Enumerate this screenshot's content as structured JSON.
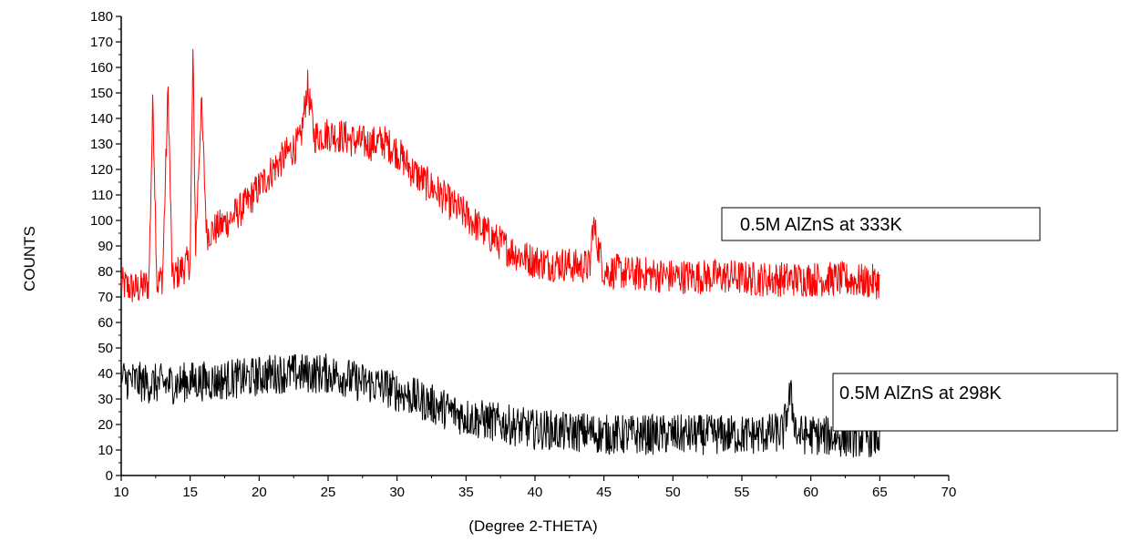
{
  "chart_data": {
    "type": "line",
    "title": "",
    "xlabel": "(Degree 2-THETA)",
    "ylabel": "COUNTS",
    "xlim": [
      10,
      70
    ],
    "ylim": [
      0,
      180
    ],
    "x_ticks": [
      "10",
      "15",
      "20",
      "25",
      "30",
      "35",
      "40",
      "45",
      "50",
      "55",
      "60",
      "65",
      "70"
    ],
    "y_ticks": [
      "0",
      "10",
      "20",
      "30",
      "40",
      "50",
      "60",
      "70",
      "80",
      "90",
      "100",
      "110",
      "120",
      "130",
      "140",
      "150",
      "160",
      "170",
      "180"
    ],
    "grid": false,
    "series": [
      {
        "name": "0.5M AlZnS at 333K",
        "color": "#ff0000",
        "x_range": [
          10,
          65
        ],
        "points": [
          [
            10,
            75
          ],
          [
            11,
            73
          ],
          [
            12,
            75
          ],
          [
            12.3,
            148
          ],
          [
            12.6,
            75
          ],
          [
            13,
            78
          ],
          [
            13.4,
            151
          ],
          [
            13.7,
            76
          ],
          [
            14,
            79
          ],
          [
            15,
            84
          ],
          [
            15.2,
            165
          ],
          [
            15.4,
            90
          ],
          [
            15.8,
            147
          ],
          [
            16.2,
            95
          ],
          [
            17,
            97
          ],
          [
            18,
            101
          ],
          [
            19,
            106
          ],
          [
            20,
            113
          ],
          [
            21,
            120
          ],
          [
            22,
            126
          ],
          [
            23,
            131
          ],
          [
            23.5,
            153
          ],
          [
            24,
            133
          ],
          [
            25,
            134
          ],
          [
            26,
            133
          ],
          [
            27,
            131
          ],
          [
            28,
            130
          ],
          [
            29,
            131
          ],
          [
            30,
            127
          ],
          [
            31,
            120
          ],
          [
            32,
            115
          ],
          [
            33,
            111
          ],
          [
            34,
            106
          ],
          [
            35,
            102
          ],
          [
            36,
            97
          ],
          [
            37,
            93
          ],
          [
            38,
            89
          ],
          [
            39,
            86
          ],
          [
            40,
            84
          ],
          [
            41,
            83
          ],
          [
            42,
            83
          ],
          [
            43,
            82
          ],
          [
            44,
            82
          ],
          [
            44.2,
            99
          ],
          [
            45,
            80
          ],
          [
            46,
            80
          ],
          [
            47,
            79
          ],
          [
            48,
            79
          ],
          [
            50,
            78
          ],
          [
            52,
            78
          ],
          [
            54,
            78
          ],
          [
            56,
            77
          ],
          [
            58,
            77
          ],
          [
            60,
            77
          ],
          [
            62,
            77
          ],
          [
            64,
            76
          ],
          [
            65,
            76
          ]
        ]
      },
      {
        "name": "0.5M AlZnS at 298K",
        "color": "#000000",
        "x_range": [
          10,
          65
        ],
        "points": [
          [
            10,
            38
          ],
          [
            11,
            37
          ],
          [
            12,
            36
          ],
          [
            13,
            36
          ],
          [
            14,
            36
          ],
          [
            15,
            37
          ],
          [
            16,
            37
          ],
          [
            17,
            37
          ],
          [
            18,
            38
          ],
          [
            19,
            38
          ],
          [
            20,
            39
          ],
          [
            21,
            40
          ],
          [
            22,
            40
          ],
          [
            23,
            40
          ],
          [
            24,
            40
          ],
          [
            25,
            40
          ],
          [
            26,
            39
          ],
          [
            27,
            37
          ],
          [
            28,
            36
          ],
          [
            29,
            35
          ],
          [
            30,
            33
          ],
          [
            31,
            31
          ],
          [
            32,
            29
          ],
          [
            33,
            27
          ],
          [
            34,
            25
          ],
          [
            35,
            23
          ],
          [
            36,
            22
          ],
          [
            37,
            21
          ],
          [
            38,
            20
          ],
          [
            39,
            19
          ],
          [
            40,
            18
          ],
          [
            41,
            18
          ],
          [
            42,
            17
          ],
          [
            43,
            17
          ],
          [
            44,
            17
          ],
          [
            45,
            16
          ],
          [
            46,
            16
          ],
          [
            47,
            16
          ],
          [
            48,
            16
          ],
          [
            50,
            16
          ],
          [
            52,
            16
          ],
          [
            54,
            16
          ],
          [
            56,
            16
          ],
          [
            58,
            17
          ],
          [
            58.5,
            32
          ],
          [
            59,
            16
          ],
          [
            60,
            16
          ],
          [
            62,
            15
          ],
          [
            64,
            15
          ],
          [
            65,
            15
          ]
        ]
      }
    ],
    "legend": [
      {
        "text": "0.5M AlZnS at 333K"
      },
      {
        "text": "0.5M AlZnS at 298K"
      }
    ]
  }
}
